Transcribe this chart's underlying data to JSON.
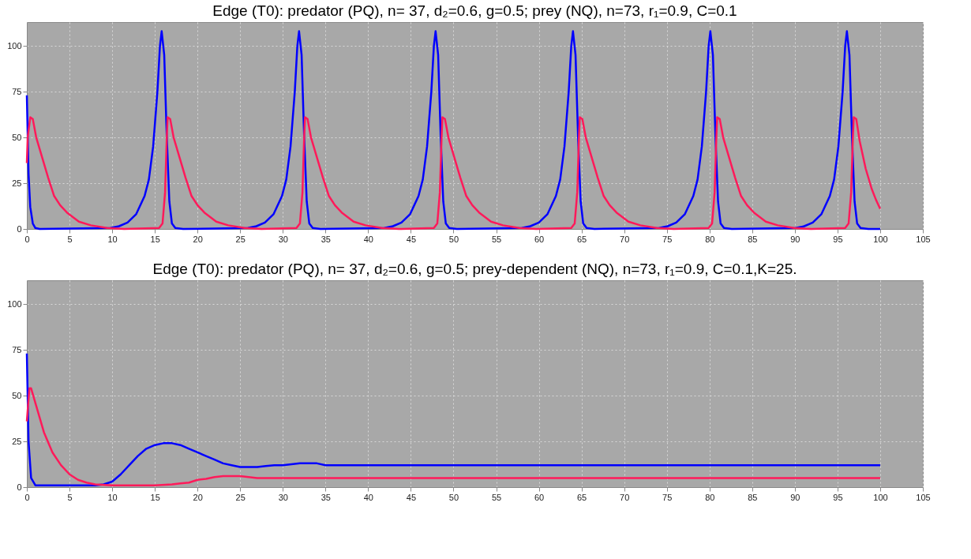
{
  "chart_data": [
    {
      "type": "line",
      "title": "Edge (T0): predator (PQ), n= 37, d₂=0.6, g=0.5; prey (NQ), n=73, r₁=0.9, C=0.1",
      "xlim": [
        0,
        105
      ],
      "xticks": [
        0,
        5,
        10,
        15,
        20,
        25,
        30,
        35,
        40,
        45,
        50,
        55,
        60,
        65,
        70,
        75,
        80,
        85,
        90,
        95,
        100,
        105
      ],
      "ylim": [
        0,
        113
      ],
      "yticks": [
        0,
        25,
        50,
        75,
        100
      ],
      "grid": true,
      "series": [
        {
          "color": "#0000ff",
          "x": [
            0,
            0.2,
            0.4,
            0.7,
            1,
            1.5,
            9.8,
            10.8,
            11.8,
            12.8,
            13.8,
            14.3,
            14.8,
            15.3,
            15.6,
            15.8,
            16.1,
            16.4,
            16.7,
            17.0,
            17.4,
            18.3,
            25.9,
            26.9,
            27.9,
            28.9,
            29.9,
            30.4,
            30.9,
            31.4,
            31.7,
            31.9,
            32.2,
            32.5,
            32.8,
            33.1,
            33.5,
            34.4,
            41.9,
            42.9,
            43.9,
            44.9,
            45.9,
            46.4,
            46.9,
            47.4,
            47.7,
            47.9,
            48.2,
            48.5,
            48.8,
            49.1,
            49.5,
            50.4,
            58,
            59,
            60,
            61,
            62,
            62.5,
            63,
            63.5,
            63.8,
            64,
            64.3,
            64.6,
            64.9,
            65.2,
            65.6,
            66.5,
            74.1,
            75.1,
            76.1,
            77.1,
            78.1,
            78.6,
            79.1,
            79.6,
            79.9,
            80.1,
            80.4,
            80.7,
            81,
            81.3,
            81.7,
            82.6,
            90.1,
            91.1,
            92.1,
            93.1,
            94.1,
            94.6,
            95.1,
            95.6,
            95.9,
            96.1,
            96.4,
            96.7,
            97,
            97.3,
            97.7,
            98.6,
            100
          ],
          "values": [
            73,
            30,
            12,
            3,
            0.5,
            0,
            0.5,
            1.5,
            3.5,
            8,
            18,
            27,
            45,
            75,
            100,
            108,
            95,
            50,
            15,
            3,
            0.5,
            0,
            0.5,
            1.5,
            3.5,
            8,
            18,
            27,
            45,
            75,
            100,
            108,
            95,
            50,
            15,
            3,
            0.5,
            0,
            0.5,
            1.5,
            3.5,
            8,
            18,
            27,
            45,
            75,
            100,
            108,
            95,
            50,
            15,
            3,
            0.5,
            0,
            0.5,
            1.5,
            3.5,
            8,
            18,
            27,
            45,
            75,
            100,
            108,
            95,
            50,
            15,
            3,
            0.5,
            0,
            0.5,
            1.5,
            3.5,
            8,
            18,
            27,
            45,
            75,
            100,
            108,
            95,
            50,
            15,
            3,
            0.5,
            0,
            0.5,
            1.5,
            3.5,
            8,
            18,
            27,
            45,
            75,
            100,
            108,
            95,
            50,
            15,
            3,
            0.5,
            0,
            0
          ]
        },
        {
          "color": "#ff1a5a",
          "x": [
            0,
            0.1,
            0.4,
            0.7,
            1.1,
            1.8,
            2.5,
            3.2,
            3.9,
            4.7,
            6.1,
            7.5,
            9.4,
            11.4,
            15.5,
            15.9,
            16.2,
            16.4,
            16.5,
            16.8,
            17.2,
            17.9,
            18.6,
            19.3,
            20,
            20.8,
            22.2,
            23.6,
            25.5,
            27.5,
            31.6,
            32,
            32.3,
            32.5,
            32.6,
            32.9,
            33.3,
            34,
            34.7,
            35.4,
            36.1,
            36.9,
            38.3,
            39.7,
            41.6,
            43.6,
            47.7,
            48.1,
            48.4,
            48.6,
            48.7,
            49,
            49.4,
            50.1,
            50.8,
            51.5,
            52.2,
            53,
            54.4,
            55.8,
            57.7,
            59.7,
            63.8,
            64.2,
            64.5,
            64.7,
            64.8,
            65.1,
            65.5,
            66.2,
            66.9,
            67.6,
            68.3,
            69.1,
            70.5,
            71.9,
            73.8,
            75.8,
            79.9,
            80.3,
            80.6,
            80.8,
            80.9,
            81.2,
            81.6,
            82.3,
            83,
            83.7,
            84.4,
            85.2,
            86.6,
            88,
            89.9,
            91.9,
            95.9,
            96.3,
            96.6,
            96.8,
            96.9,
            97.2,
            97.6,
            98.3,
            99,
            99.5,
            100
          ],
          "values": [
            36,
            50,
            61,
            60,
            50,
            39,
            28,
            18,
            13,
            9,
            4,
            2,
            0.5,
            0,
            0.5,
            3,
            20,
            50,
            61,
            60,
            50,
            39,
            28,
            18,
            13,
            9,
            4,
            2,
            0.5,
            0,
            0.5,
            3,
            20,
            50,
            61,
            60,
            50,
            39,
            28,
            18,
            13,
            9,
            4,
            2,
            0.5,
            0,
            0.5,
            3,
            20,
            50,
            61,
            60,
            50,
            39,
            28,
            18,
            13,
            9,
            4,
            2,
            0.5,
            0,
            0.5,
            3,
            20,
            50,
            61,
            60,
            50,
            39,
            28,
            18,
            13,
            9,
            4,
            2,
            0.5,
            0,
            0.5,
            3,
            20,
            50,
            61,
            60,
            50,
            39,
            28,
            18,
            13,
            9,
            4,
            2,
            0.5,
            0,
            0.5,
            3,
            20,
            50,
            61,
            60,
            48,
            33,
            22,
            16,
            11
          ]
        }
      ]
    },
    {
      "type": "line",
      "title": "Edge (T0): predator (PQ), n= 37, d₂=0.6, g=0.5; prey-dependent (NQ), n=73, r₁=0.9, C=0.1,K=25.",
      "xlim": [
        0,
        105
      ],
      "xticks": [
        0,
        5,
        10,
        15,
        20,
        25,
        30,
        35,
        40,
        45,
        50,
        55,
        60,
        65,
        70,
        75,
        80,
        85,
        90,
        95,
        100,
        105
      ],
      "ylim": [
        0,
        113
      ],
      "yticks": [
        0,
        25,
        50,
        75,
        100
      ],
      "grid": true,
      "series": [
        {
          "color": "#0000ff",
          "x": [
            0,
            0.2,
            0.5,
            1,
            8,
            9,
            10,
            11,
            12,
            13,
            14,
            15,
            16,
            17,
            18,
            19,
            20,
            21,
            22,
            23,
            24,
            25,
            26,
            27,
            28,
            29,
            30,
            31,
            32,
            34,
            35,
            40,
            100
          ],
          "values": [
            73,
            25,
            5,
            1,
            1,
            1.5,
            3,
            7,
            12,
            17,
            21,
            23,
            24,
            24,
            23,
            21,
            19,
            17,
            15,
            13,
            12,
            11,
            11,
            11,
            11.5,
            12,
            12,
            12.5,
            13,
            13,
            12,
            12,
            12
          ]
        },
        {
          "color": "#ff1a5a",
          "x": [
            0,
            0.3,
            0.5,
            1,
            2,
            3,
            4,
            5,
            6,
            7,
            8,
            10,
            15,
            17,
            18,
            19,
            20,
            21,
            22,
            23,
            24,
            25,
            26,
            27,
            30,
            100
          ],
          "values": [
            36,
            54,
            54,
            46,
            30,
            19,
            12,
            7,
            4,
            2.5,
            1.5,
            1,
            1,
            1.5,
            2,
            2.5,
            4,
            4.5,
            5.5,
            6,
            6,
            6,
            5.5,
            5,
            5,
            5
          ]
        }
      ]
    }
  ]
}
